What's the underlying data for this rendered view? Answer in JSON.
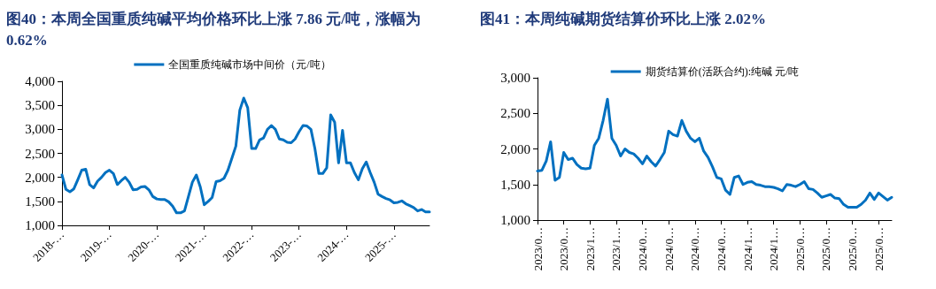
{
  "chart_data": [
    {
      "type": "line",
      "title": "图40：本周全国重质纯碱平均价格环比上涨 7.86 元/吨，涨幅为 0.62%",
      "categories": [
        "2018-…",
        null,
        null,
        null,
        null,
        null,
        null,
        null,
        null,
        null,
        null,
        null,
        "2019-…",
        null,
        null,
        null,
        null,
        null,
        null,
        null,
        null,
        null,
        null,
        null,
        "2020-…",
        null,
        null,
        null,
        null,
        null,
        null,
        null,
        null,
        null,
        null,
        null,
        "2021-…",
        null,
        null,
        null,
        null,
        null,
        null,
        null,
        null,
        null,
        null,
        null,
        "2022-…",
        null,
        null,
        null,
        null,
        null,
        null,
        null,
        null,
        null,
        null,
        null,
        "2023-…",
        null,
        null,
        null,
        null,
        null,
        null,
        null,
        null,
        null,
        null,
        null,
        "2024-…",
        null,
        null,
        null,
        null,
        null,
        null,
        null,
        null,
        null,
        null,
        null,
        "2025-…",
        null,
        null,
        null,
        null,
        null,
        null,
        null,
        null,
        null
      ],
      "series": [
        {
          "name": "全国重质纯碱市场中间价（元/吨）",
          "color": "#0070c0",
          "values": [
            2050,
            1750,
            1700,
            1760,
            1950,
            2150,
            2170,
            1850,
            1780,
            1920,
            2000,
            2100,
            2150,
            2080,
            1850,
            1930,
            2000,
            1900,
            1740,
            1750,
            1800,
            1810,
            1740,
            1600,
            1550,
            1540,
            1540,
            1490,
            1400,
            1260,
            1260,
            1300,
            1600,
            1900,
            2050,
            1800,
            1430,
            1500,
            1580,
            1910,
            1930,
            1980,
            2150,
            2400,
            2650,
            3400,
            3650,
            3450,
            2600,
            2600,
            2780,
            2820,
            3000,
            3080,
            3000,
            2800,
            2780,
            2730,
            2720,
            2800,
            2950,
            3080,
            3070,
            3000,
            2600,
            2080,
            2080,
            2200,
            3300,
            3150,
            2300,
            2980,
            2300,
            2300,
            2100,
            1950,
            2180,
            2320,
            2100,
            1900,
            1650,
            1600,
            1560,
            1530,
            1470,
            1480,
            1510,
            1450,
            1410,
            1370,
            1300,
            1330,
            1280,
            1280
          ]
        }
      ],
      "ylim": [
        1000,
        4000
      ],
      "yticks": [
        {
          "value": 1000,
          "label": "1,000"
        },
        {
          "value": 1500,
          "label": "1,500"
        },
        {
          "value": 2000,
          "label": "2,000"
        },
        {
          "value": 2500,
          "label": "2,500"
        },
        {
          "value": 3000,
          "label": "3,000"
        },
        {
          "value": 3500,
          "label": "3,500"
        },
        {
          "value": 4000,
          "label": "4,000"
        }
      ],
      "grid": false,
      "legend": "top",
      "marker": "none",
      "line_style": "solid"
    },
    {
      "type": "line",
      "title": "图41：本周纯碱期货结算价环比上涨 2.02%",
      "categories": [
        "2023/0…",
        null,
        null,
        null,
        null,
        null,
        "2023/0…",
        null,
        null,
        null,
        null,
        null,
        "2023/1…",
        null,
        null,
        null,
        null,
        null,
        "2023/1…",
        null,
        null,
        null,
        null,
        null,
        "2024/0…",
        null,
        null,
        null,
        null,
        null,
        "2024/0…",
        null,
        null,
        null,
        null,
        null,
        "2024/0…",
        null,
        null,
        null,
        null,
        null,
        "2024/0…",
        null,
        null,
        null,
        null,
        null,
        "2024/1…",
        null,
        null,
        null,
        null,
        null,
        "2024/1…",
        null,
        null,
        null,
        null,
        null,
        "2025/0…",
        null,
        null,
        null,
        null,
        null,
        "2025/0…",
        null,
        null,
        null,
        null,
        null,
        "2025/0…",
        null,
        null,
        null,
        null,
        null,
        "2025/0…",
        null,
        null,
        null
      ],
      "series": [
        {
          "name": "期货结算价(活跃合约):纯碱 元/吨",
          "color": "#0070c0",
          "values": [
            1690,
            1700,
            1830,
            2100,
            1560,
            1600,
            1950,
            1850,
            1870,
            1780,
            1730,
            1720,
            1730,
            2050,
            2150,
            2400,
            2700,
            2150,
            2050,
            1900,
            2000,
            1950,
            1930,
            1870,
            1790,
            1900,
            1820,
            1760,
            1850,
            1950,
            2250,
            2200,
            2180,
            2400,
            2250,
            2150,
            2100,
            2150,
            1970,
            1880,
            1750,
            1600,
            1580,
            1420,
            1360,
            1600,
            1620,
            1500,
            1530,
            1540,
            1500,
            1490,
            1470,
            1470,
            1460,
            1440,
            1410,
            1500,
            1490,
            1470,
            1500,
            1540,
            1440,
            1430,
            1380,
            1320,
            1340,
            1360,
            1310,
            1300,
            1220,
            1180,
            1180,
            1180,
            1220,
            1280,
            1380,
            1290,
            1380,
            1330,
            1280,
            1320
          ]
        }
      ],
      "ylim": [
        1000,
        3000
      ],
      "yticks": [
        {
          "value": 1000,
          "label": "1,000"
        },
        {
          "value": 1500,
          "label": "1,500"
        },
        {
          "value": 2000,
          "label": "2,000"
        },
        {
          "value": 2500,
          "label": "2,500"
        },
        {
          "value": 3000,
          "label": "3,000"
        }
      ],
      "grid": false,
      "legend": "top",
      "marker": "none",
      "line_style": "solid"
    }
  ]
}
